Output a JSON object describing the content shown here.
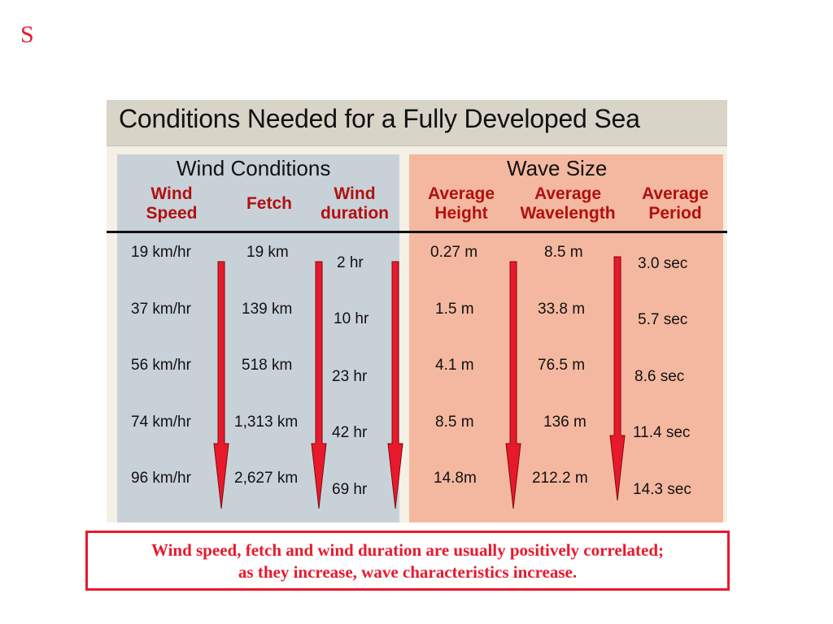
{
  "corner_label": "S",
  "figure": {
    "title": "Conditions Needed for a Fully Developed Sea",
    "wind_group": "Wind Conditions",
    "wave_group": "Wave Size",
    "headers": {
      "wind_speed": "Wind\nSpeed",
      "fetch": "Fetch",
      "wind_duration": "Wind\nduration",
      "avg_height": "Average\nHeight",
      "avg_wavelength": "Average\nWavelength",
      "avg_period": "Average\nPeriod"
    },
    "rows": [
      {
        "wind_speed": "19 km/hr",
        "fetch": "19 km",
        "duration": "2 hr",
        "height": "0.27 m",
        "wavelength": "8.5 m",
        "period": "3.0 sec"
      },
      {
        "wind_speed": "37 km/hr",
        "fetch": "139 km",
        "duration": "10 hr",
        "height": "1.5 m",
        "wavelength": "33.8 m",
        "period": "5.7 sec"
      },
      {
        "wind_speed": "56 km/hr",
        "fetch": "518 km",
        "duration": "23 hr",
        "height": "4.1 m",
        "wavelength": "76.5 m",
        "period": "8.6 sec"
      },
      {
        "wind_speed": "74 km/hr",
        "fetch": "1,313 km",
        "duration": "42 hr",
        "height": "8.5 m",
        "wavelength": "136 m",
        "period": "11.4 sec"
      },
      {
        "wind_speed": "96 km/hr",
        "fetch": "2,627 km",
        "duration": "69 hr",
        "height": "14.8m",
        "wavelength": "212.2 m",
        "period": "14.3 sec"
      }
    ],
    "arrow_color": "#e8192c"
  },
  "caption": {
    "line1": "Wind speed, fetch and wind duration are usually positively correlated;",
    "line2": "as they increase, wave characteristics increase."
  }
}
